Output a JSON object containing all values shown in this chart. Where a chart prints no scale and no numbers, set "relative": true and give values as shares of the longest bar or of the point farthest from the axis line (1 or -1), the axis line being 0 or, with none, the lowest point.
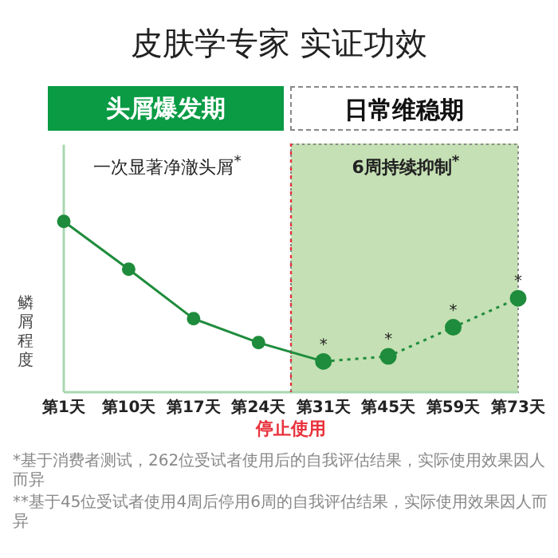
{
  "chart_data": {
    "type": "line",
    "title": "皮肤学专家 实证功效",
    "ylabel": "鳞屑程度",
    "relative": true,
    "categories": [
      "第1天",
      "第10天",
      "第17天",
      "第24天",
      "第31天",
      "第45天",
      "第59天",
      "第73天"
    ],
    "series": [
      {
        "color": "#1e8c3c",
        "values": [
          1,
          0.72,
          0.43,
          0.29,
          0.18,
          null,
          null,
          null
        ],
        "line_style": "solid"
      },
      {
        "color": "#1e8c3c",
        "values": [
          null,
          null,
          null,
          null,
          0.18,
          0.21,
          0.38,
          0.55
        ],
        "line_style": "dotted"
      }
    ],
    "marker": "circle",
    "grid": false,
    "legend": false,
    "ref_lines": [
      {
        "axis": "x",
        "value": "第24天",
        "label": "停止使用",
        "color": "#e8323c",
        "line_style": "dotted"
      }
    ],
    "bands": [
      {
        "axis": "x",
        "from": "第24天",
        "to": "第73天",
        "color": "#c5e0b4"
      }
    ],
    "annotations": [
      "头屑爆发期",
      "日常维稳期",
      "一次显著净澈头屑$^{*}$",
      "6周持续抑制$^{*}$",
      "*基于消费者测试，262位受试者使用后的自我评估结果，实际使用效果因人而异",
      "**基于45位受试者使用4周后停用6周的自我评估结果，实际使用效果因人而异",
      {
        "text": "*",
        "x": "第31天",
        "y": 0.18
      },
      {
        "text": "*",
        "x": "第45天",
        "y": 0.21
      },
      {
        "text": "*",
        "x": "第59天",
        "y": 0.38
      },
      {
        "text": "*",
        "x": "第73天",
        "y": 0.55
      }
    ]
  }
}
